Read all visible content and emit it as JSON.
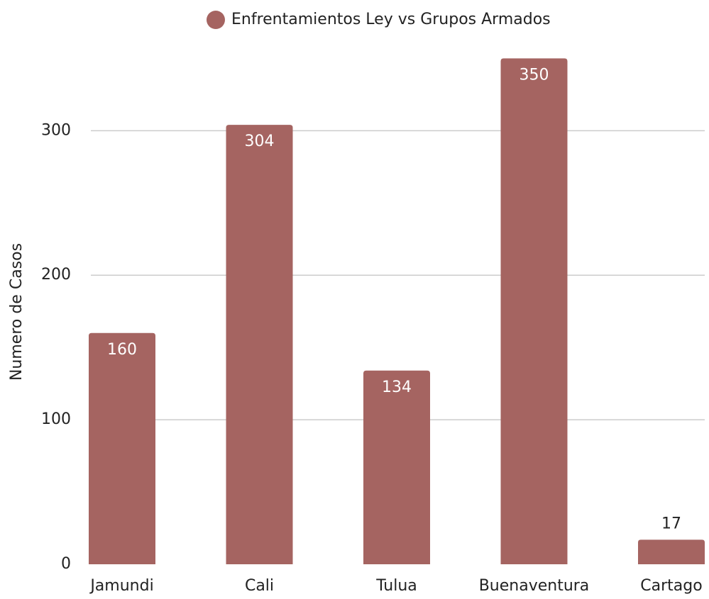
{
  "chart_data": {
    "type": "bar",
    "legend": "Enfrentamientos Ley vs Grupos Armados",
    "ylabel": "Numero de Casos",
    "categories": [
      "Jamundi",
      "Cali",
      "Tulua",
      "Buenaventura",
      "Cartago"
    ],
    "values": [
      160,
      304,
      134,
      350,
      17
    ],
    "color": "#a56461",
    "ylim": [
      0,
      360
    ],
    "yticks": [
      0,
      100,
      200,
      300
    ],
    "grid": true,
    "legend_position": "top"
  }
}
